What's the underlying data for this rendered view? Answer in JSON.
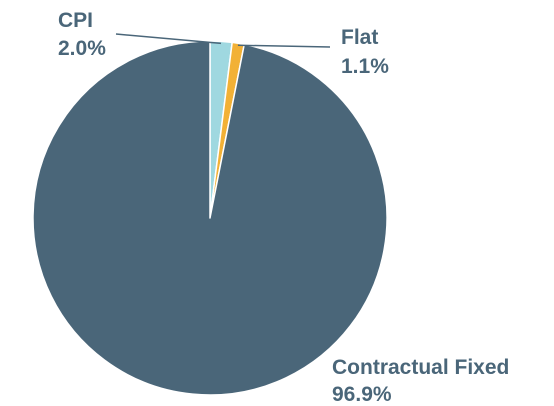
{
  "chart_data": {
    "type": "pie",
    "title": "",
    "slices": [
      {
        "label": "CPI",
        "value": 2.0,
        "value_label": "2.0%",
        "color": "#9fd8e0"
      },
      {
        "label": "Flat",
        "value": 1.1,
        "value_label": "1.1%",
        "color": "#f2b136"
      },
      {
        "label": "Contractual Fixed",
        "value": 96.9,
        "value_label": "96.9%",
        "color": "#4a6679"
      }
    ],
    "label_color": "#4a6679",
    "leader_line_color": "#4a6679",
    "slice_border_color": "#ffffff"
  }
}
